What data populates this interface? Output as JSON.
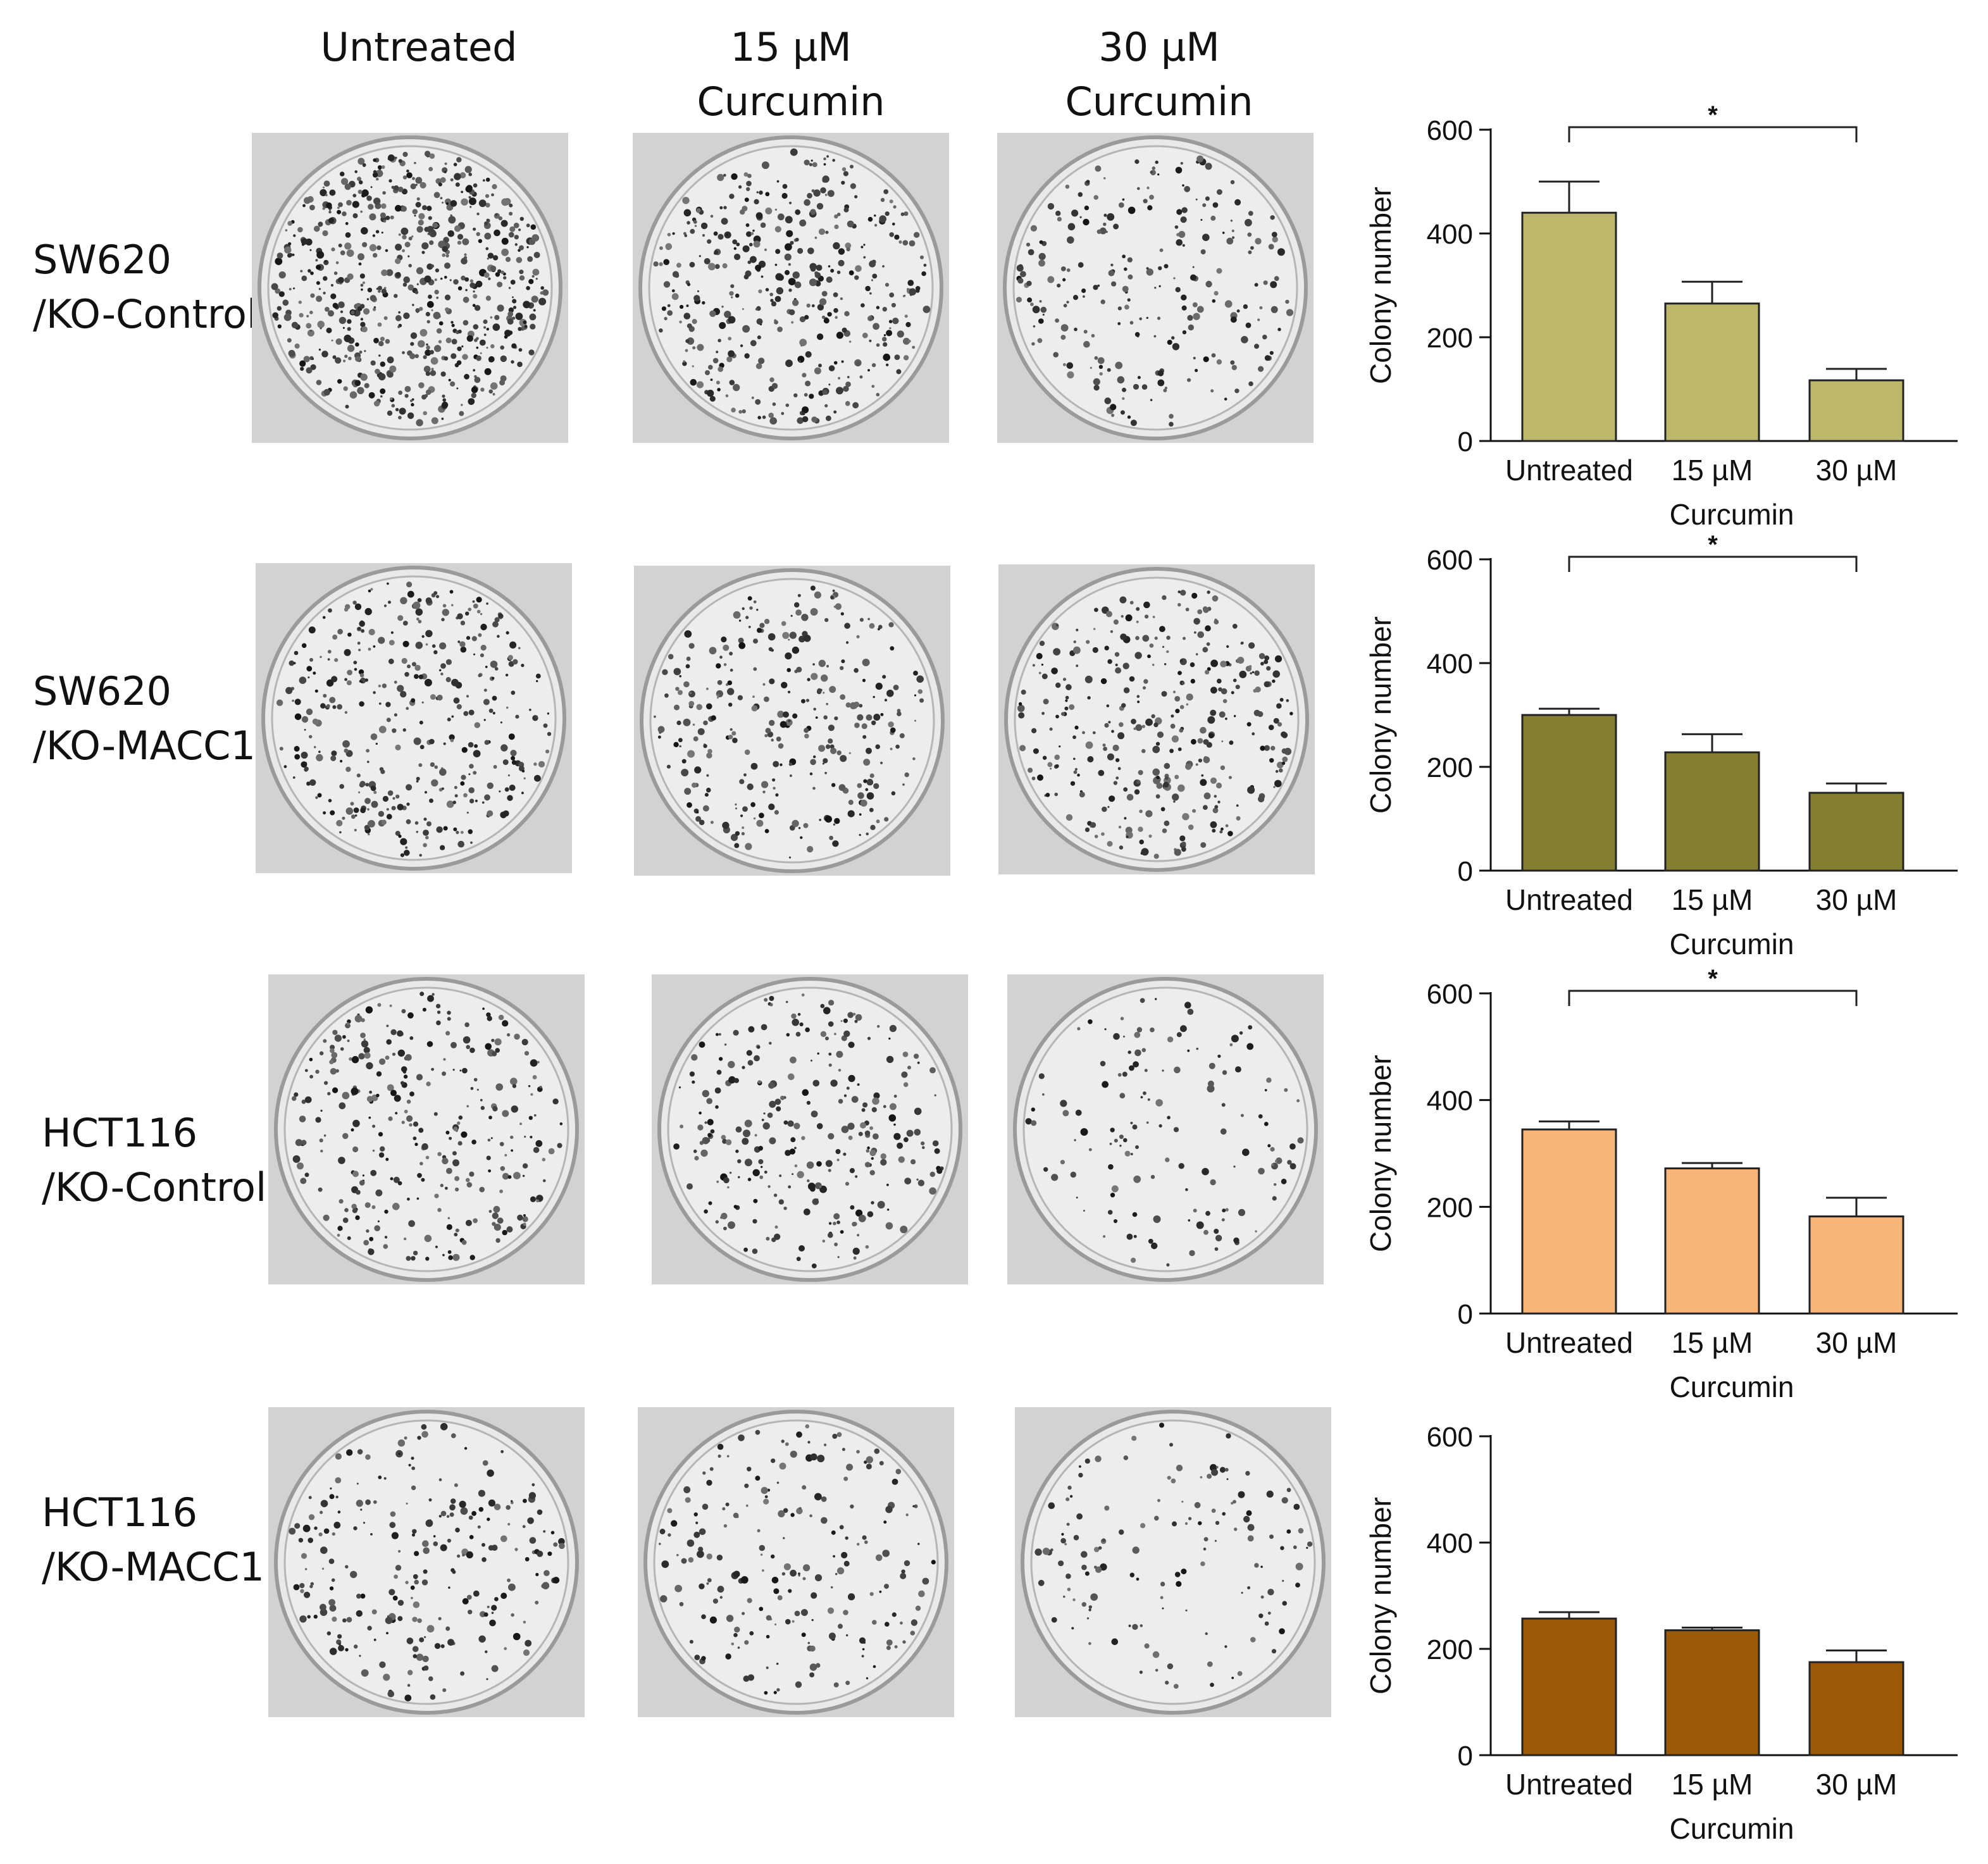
{
  "column_headers": [
    {
      "text": "Untreated"
    },
    {
      "text": "15 µM\nCurcumin"
    },
    {
      "text": "30 µM\nCurcumin"
    }
  ],
  "rows": [
    {
      "label": "SW620\n/KO-Control"
    },
    {
      "label": "SW620\n/KO-MACC1"
    },
    {
      "label": "HCT116\n/KO-Control"
    },
    {
      "label": "HCT116\n/KO-MACC1"
    }
  ],
  "colony_density": [
    [
      0.95,
      0.6,
      0.35
    ],
    [
      0.55,
      0.45,
      0.5
    ],
    [
      0.45,
      0.4,
      0.2
    ],
    [
      0.35,
      0.3,
      0.2
    ]
  ],
  "chart_data": [
    {
      "type": "bar",
      "categories": [
        "Untreated",
        "15 µM",
        "30 µM"
      ],
      "values": [
        440,
        265,
        117
      ],
      "errors": [
        60,
        42,
        22
      ],
      "ylabel": "Colony number",
      "xlabel": "Curcumin",
      "ylim": [
        0,
        600
      ],
      "yticks": [
        0,
        200,
        400,
        600
      ],
      "color": "#bdb76b",
      "significance": {
        "from": 0,
        "to": 2,
        "label": "*"
      }
    },
    {
      "type": "bar",
      "categories": [
        "Untreated",
        "15 µM",
        "30 µM"
      ],
      "values": [
        300,
        228,
        150
      ],
      "errors": [
        12,
        35,
        18
      ],
      "ylabel": "Colony number",
      "xlabel": "Curcumin",
      "ylim": [
        0,
        600
      ],
      "yticks": [
        0,
        200,
        400,
        600
      ],
      "color": "#857d30",
      "significance": {
        "from": 0,
        "to": 2,
        "label": "*"
      }
    },
    {
      "type": "bar",
      "categories": [
        "Untreated",
        "15 µM",
        "30 µM"
      ],
      "values": [
        345,
        272,
        182
      ],
      "errors": [
        15,
        10,
        35
      ],
      "ylabel": "Colony number",
      "xlabel": "Curcumin",
      "ylim": [
        0,
        600
      ],
      "yticks": [
        0,
        200,
        400,
        600
      ],
      "color": "#f7b57a",
      "significance": {
        "from": 0,
        "to": 2,
        "label": "*"
      }
    },
    {
      "type": "bar",
      "categories": [
        "Untreated",
        "15 µM",
        "30 µM"
      ],
      "values": [
        257,
        235,
        175
      ],
      "errors": [
        12,
        5,
        22
      ],
      "ylabel": "Colony number",
      "xlabel": "Curcumin",
      "ylim": [
        0,
        600
      ],
      "yticks": [
        0,
        200,
        400,
        600
      ],
      "color": "#9a5a08"
    }
  ]
}
